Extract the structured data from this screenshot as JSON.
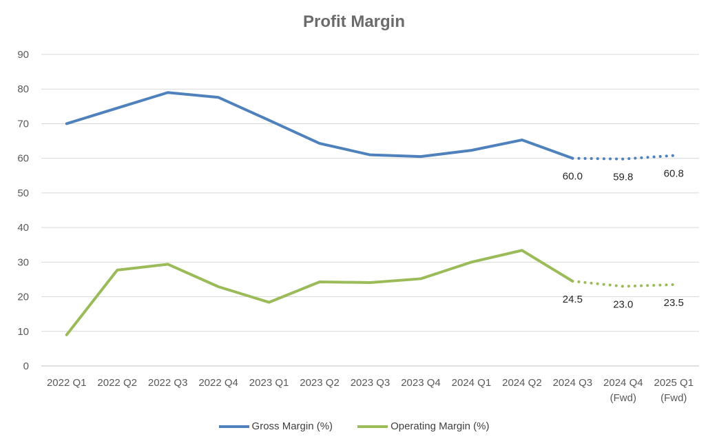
{
  "chart_data": {
    "type": "line",
    "title": "Profit Margin",
    "categories": [
      [
        "2022 Q1"
      ],
      [
        "2022 Q2"
      ],
      [
        "2022 Q3"
      ],
      [
        "2022 Q4"
      ],
      [
        "2023 Q1"
      ],
      [
        "2023 Q2"
      ],
      [
        "2023 Q3"
      ],
      [
        "2023 Q4"
      ],
      [
        "2024 Q1"
      ],
      [
        "2024 Q2"
      ],
      [
        "2024 Q3"
      ],
      [
        "2024 Q4",
        "(Fwd)"
      ],
      [
        "2025 Q1",
        "(Fwd)"
      ]
    ],
    "ylim": [
      0,
      90
    ],
    "yticks": [
      0,
      10,
      20,
      30,
      40,
      50,
      60,
      70,
      80,
      90
    ],
    "grid": true,
    "legend_position": "bottom",
    "forecast_start_index": 10,
    "series": [
      {
        "name": "Gross Margin (%)",
        "color": "#4f81bd",
        "values": [
          70.0,
          74.5,
          79.0,
          77.6,
          71.0,
          64.3,
          61.0,
          60.5,
          62.3,
          65.3,
          60.0,
          59.8,
          60.8
        ],
        "data_labels": [
          {
            "index": 10,
            "text": "60.0"
          },
          {
            "index": 11,
            "text": "59.8"
          },
          {
            "index": 12,
            "text": "60.8"
          }
        ]
      },
      {
        "name": "Operating Margin (%)",
        "color": "#9bbb59",
        "values": [
          9.0,
          27.7,
          29.4,
          22.9,
          18.4,
          24.3,
          24.1,
          25.2,
          30.0,
          33.4,
          24.5,
          23.0,
          23.5
        ],
        "data_labels": [
          {
            "index": 10,
            "text": "24.5"
          },
          {
            "index": 11,
            "text": "23.0"
          },
          {
            "index": 12,
            "text": "23.5"
          }
        ]
      }
    ]
  }
}
